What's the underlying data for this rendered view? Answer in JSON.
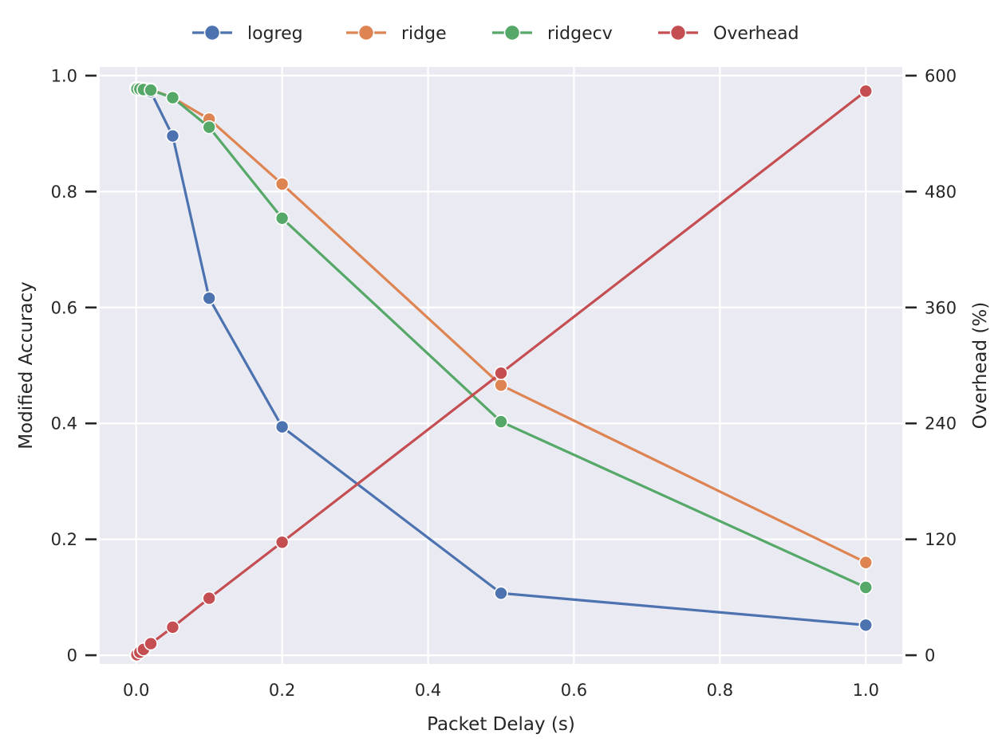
{
  "chart_data": {
    "type": "line",
    "title": "",
    "xlabel": "Packet Delay (s)",
    "ylabel": "Modified Accuracy",
    "y2label": "Overhead (%)",
    "xlim": [
      -0.05,
      1.05
    ],
    "ylim": [
      -0.015,
      1.015
    ],
    "y2lim": [
      -9,
      609
    ],
    "grid": true,
    "legend_position": "top-center",
    "x_ticks": [
      "0.0",
      "0.2",
      "0.4",
      "0.6",
      "0.8",
      "1.0"
    ],
    "y_ticks": [
      "0",
      "0.2",
      "0.4",
      "0.6",
      "0.8",
      "1.0"
    ],
    "y2_ticks": [
      "0",
      "120",
      "240",
      "360",
      "480",
      "600"
    ],
    "x": [
      0,
      0.001,
      0.005,
      0.01,
      0.02,
      0.05,
      0.1,
      0.2,
      0.5,
      1.0
    ],
    "series": [
      {
        "name": "logreg",
        "axis": "left",
        "color": "#4c72b0",
        "values": [
          0.978,
          0.978,
          0.977,
          0.976,
          0.972,
          0.896,
          0.616,
          0.394,
          0.107,
          0.052
        ]
      },
      {
        "name": "ridge",
        "axis": "left",
        "color": "#dd8452",
        "values": [
          0.978,
          0.978,
          0.977,
          0.977,
          0.976,
          0.962,
          0.925,
          0.813,
          0.466,
          0.16
        ]
      },
      {
        "name": "ridgecv",
        "axis": "left",
        "color": "#55a868",
        "values": [
          0.978,
          0.977,
          0.977,
          0.976,
          0.975,
          0.962,
          0.911,
          0.754,
          0.403,
          0.117
        ]
      },
      {
        "name": "Overhead",
        "axis": "right",
        "color": "#c44e52",
        "values": [
          0,
          0.6,
          3,
          6,
          12,
          29,
          59,
          117,
          292,
          584
        ]
      }
    ]
  },
  "colors": {
    "plot_background": "#eaeaf2",
    "grid": "#ffffff",
    "text": "#262626"
  }
}
